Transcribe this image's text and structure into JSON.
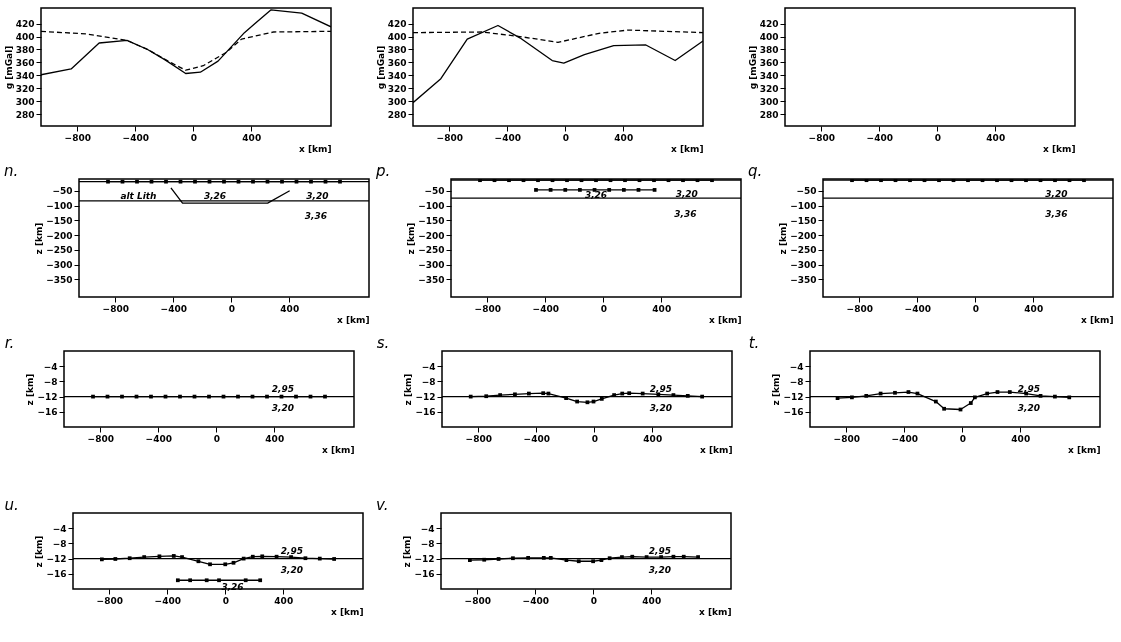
{
  "chart_data": [
    {
      "type": "line",
      "xlabel": "x [km]",
      "ylabel": "g [mGal]",
      "xlim": [
        -1050,
        950
      ],
      "xticks": [
        -800,
        -400,
        0,
        400
      ],
      "ylim": [
        262,
        444
      ],
      "yticks": [
        280,
        300,
        320,
        340,
        360,
        380,
        400,
        420
      ],
      "series": [
        {
          "color": "#000000",
          "line_style": "solid",
          "marker": "none",
          "x": [
            -1050,
            -842,
            -649,
            -457,
            -315,
            -194,
            -52,
            49,
            171,
            353,
            535,
            748,
            950
          ],
          "values": [
            341,
            350,
            390,
            394,
            380,
            364,
            343,
            345,
            362,
            406,
            441,
            436,
            415
          ]
        },
        {
          "color": "#000000",
          "line_style": "dashed",
          "marker": "none",
          "x": [
            -1050,
            -740,
            -457,
            -315,
            -173,
            -52,
            69,
            231,
            333,
            555,
            950
          ],
          "values": [
            408,
            404,
            394,
            380,
            362,
            348,
            355,
            376,
            396,
            407,
            408
          ]
        }
      ]
    },
    {
      "type": "line",
      "title": "n.",
      "xlabel": "x [km]",
      "ylabel": "z [km]",
      "xlim": [
        -1050,
        950
      ],
      "xticks": [
        -800,
        -400,
        0,
        400
      ],
      "ylim": [
        -410,
        -10
      ],
      "yticks": [
        -50,
        -100,
        -150,
        -200,
        -250,
        -300,
        -350
      ],
      "series": [
        {
          "color": "#000000",
          "line_style": "solid",
          "marker": "none",
          "x": [
            -1050,
            950
          ],
          "values": [
            -19,
            -19
          ]
        },
        {
          "color": "#000000",
          "line_style": "solid",
          "marker": "square",
          "x": [
            -850,
            -750,
            -650,
            -550,
            -450,
            -350,
            -250,
            -150,
            -50,
            50,
            150,
            250,
            350,
            450,
            550,
            650,
            750
          ],
          "values": [
            -19,
            -19,
            -19,
            -19,
            -19,
            -19,
            -19,
            -19,
            -19,
            -19,
            -19,
            -19,
            -19,
            -19,
            -19,
            -19,
            -19
          ]
        },
        {
          "color": "#000000",
          "line_style": "solid",
          "marker": "none",
          "x": [
            -1050,
            950
          ],
          "values": [
            -84,
            -84
          ]
        },
        {
          "color": "#000000",
          "line_style": "solid",
          "marker": "none",
          "x": [
            -416,
            -336,
            251,
            403
          ],
          "values": [
            -40,
            -92,
            -92,
            -50
          ]
        }
      ],
      "annotations": [
        "alt Lith",
        "3,26",
        "3,20",
        "3,36"
      ]
    },
    {
      "type": "line",
      "xlabel": "x [km]",
      "ylabel": "g [mGal]",
      "xlim": [
        -1050,
        950
      ],
      "xticks": [
        -800,
        -400,
        0,
        400
      ],
      "ylim": [
        262,
        444
      ],
      "yticks": [
        280,
        300,
        320,
        340,
        360,
        380,
        400,
        420
      ],
      "series": [
        {
          "color": "#000000",
          "line_style": "solid",
          "marker": "none",
          "x": [
            -1050,
            -858,
            -676,
            -464,
            -313,
            -90,
            -10,
            132,
            334,
            556,
            758,
            950
          ],
          "values": [
            298,
            335,
            396,
            417,
            398,
            363,
            359,
            372,
            386,
            387,
            363,
            393
          ]
        },
        {
          "color": "#000000",
          "line_style": "dashed",
          "marker": "none",
          "x": [
            -1050,
            -575,
            -313,
            -50,
            233,
            435,
            950
          ],
          "values": [
            406,
            407,
            400,
            391,
            405,
            410,
            406
          ]
        }
      ]
    },
    {
      "type": "line",
      "title": "p.",
      "xlabel": "x [km]",
      "ylabel": "z [km]",
      "xlim": [
        -1050,
        950
      ],
      "xticks": [
        -800,
        -400,
        0,
        400
      ],
      "ylim": [
        -410,
        -10
      ],
      "yticks": [
        -50,
        -100,
        -150,
        -200,
        -250,
        -300,
        -350
      ],
      "series": [
        {
          "color": "#000000",
          "line_style": "solid",
          "marker": "none",
          "x": [
            -1050,
            950
          ],
          "values": [
            -14,
            -14
          ]
        },
        {
          "color": "#000000",
          "line_style": "solid",
          "marker": "square",
          "x": [
            -850,
            -750,
            -650,
            -550,
            -450,
            -350,
            -250,
            -150,
            -50,
            50,
            150,
            250,
            350,
            450,
            550,
            650,
            750
          ],
          "values": [
            -14,
            -14,
            -14,
            -14,
            -14,
            -14,
            -14,
            -14,
            -14,
            -14,
            -14,
            -14,
            -14,
            -14,
            -14,
            -14,
            -14
          ]
        },
        {
          "color": "#000000",
          "line_style": "solid",
          "marker": "none",
          "x": [
            -1050,
            950
          ],
          "values": [
            -75,
            -75
          ]
        },
        {
          "color": "#000000",
          "line_style": "solid",
          "marker": "square",
          "x": [
            -464,
            -363,
            -262,
            -161,
            -60,
            41,
            142,
            243,
            354
          ],
          "values": [
            -47,
            -47,
            -47,
            -47,
            -47,
            -47,
            -47,
            -47,
            -47
          ]
        }
      ],
      "annotations": [
        "3,26",
        "3,20",
        "3,36"
      ]
    },
    {
      "type": "line",
      "xlabel": "x [km]",
      "ylabel": "g [mGal]",
      "xlim": [
        -1050,
        950
      ],
      "xticks": [
        -800,
        -400,
        0,
        400
      ],
      "ylim": [
        262,
        444
      ],
      "yticks": [
        280,
        300,
        320,
        340,
        360,
        380,
        400,
        420
      ]
    },
    {
      "type": "line",
      "title": "q.",
      "xlabel": "x [km]",
      "ylabel": "z [km]",
      "xlim": [
        -1050,
        950
      ],
      "xticks": [
        -800,
        -400,
        0,
        400
      ],
      "ylim": [
        -410,
        -10
      ],
      "yticks": [
        -50,
        -100,
        -150,
        -200,
        -250,
        -300,
        -350
      ],
      "series": [
        {
          "color": "#000000",
          "line_style": "solid",
          "marker": "none",
          "x": [
            -1050,
            950
          ],
          "values": [
            -14,
            -14
          ]
        },
        {
          "color": "#000000",
          "line_style": "solid",
          "marker": "square",
          "x": [
            -850,
            -750,
            -650,
            -550,
            -450,
            -350,
            -250,
            -150,
            -50,
            50,
            150,
            250,
            350,
            450,
            550,
            650,
            750
          ],
          "values": [
            -14,
            -14,
            -14,
            -14,
            -14,
            -14,
            -14,
            -14,
            -14,
            -14,
            -14,
            -14,
            -14,
            -14,
            -14,
            -14,
            -14
          ]
        },
        {
          "color": "#000000",
          "line_style": "solid",
          "marker": "none",
          "x": [
            -1050,
            950
          ],
          "values": [
            -75,
            -75
          ]
        }
      ],
      "annotations": [
        "3,20",
        "3,36"
      ]
    },
    {
      "type": "line",
      "title": "r.",
      "xlabel": "x [km]",
      "ylabel": "z [km]",
      "xlim": [
        -1050,
        950
      ],
      "xticks": [
        -800,
        -400,
        0,
        400
      ],
      "ylim": [
        -20,
        0
      ],
      "yticks": [
        -4,
        -8,
        -12,
        -16
      ],
      "series": [
        {
          "color": "#000000",
          "line_style": "solid",
          "marker": "none",
          "x": [
            -1050,
            950
          ],
          "values": [
            -12,
            -12
          ]
        },
        {
          "color": "#000000",
          "line_style": "solid",
          "marker": "square",
          "x": [
            -850,
            -750,
            -650,
            -550,
            -450,
            -350,
            -250,
            -150,
            -50,
            50,
            150,
            250,
            350,
            450,
            550,
            650,
            750
          ],
          "values": [
            -12,
            -12,
            -12,
            -12,
            -12,
            -12,
            -12,
            -12,
            -12,
            -12,
            -12,
            -12,
            -12,
            -12,
            -12,
            -12,
            -12
          ]
        }
      ],
      "annotations": [
        "2,95",
        "3,20"
      ]
    },
    {
      "type": "line",
      "title": "s.",
      "xlabel": "x [km]",
      "ylabel": "z [km]",
      "xlim": [
        -1050,
        950
      ],
      "xticks": [
        -800,
        -400,
        0,
        400
      ],
      "ylim": [
        -20,
        0
      ],
      "yticks": [
        -4,
        -8,
        -12,
        -16
      ],
      "series": [
        {
          "color": "#000000",
          "line_style": "solid",
          "marker": "none",
          "x": [
            -1050,
            950
          ],
          "values": [
            -12,
            -12
          ]
        },
        {
          "color": "#000000",
          "line_style": "solid",
          "marker": "square",
          "x": [
            -852,
            -745,
            -649,
            -547,
            -451,
            -352,
            -316,
            -194,
            -118,
            -47,
            -5,
            52,
            137,
            193,
            241,
            334,
            442,
            546,
            645,
            744
          ],
          "values": [
            -12,
            -11.9,
            -11.6,
            -11.4,
            -11.2,
            -11.1,
            -11.2,
            -12.4,
            -13.3,
            -13.5,
            -13.3,
            -12.6,
            -11.6,
            -11.2,
            -11.1,
            -11.2,
            -11.4,
            -11.6,
            -11.8,
            -12
          ]
        }
      ],
      "annotations": [
        "2,95",
        "3,20"
      ]
    },
    {
      "type": "line",
      "title": "t.",
      "xlabel": "x [km]",
      "ylabel": "z [km]",
      "xlim": [
        -1050,
        950
      ],
      "xticks": [
        -800,
        -400,
        0,
        400
      ],
      "ylim": [
        -20,
        0
      ],
      "yticks": [
        -4,
        -8,
        -12,
        -16
      ],
      "series": [
        {
          "color": "#000000",
          "line_style": "solid",
          "marker": "none",
          "x": [
            -1050,
            950
          ],
          "values": [
            -12,
            -12
          ]
        },
        {
          "color": "#000000",
          "line_style": "solid",
          "marker": "square",
          "x": [
            -860,
            -761,
            -662,
            -563,
            -464,
            -371,
            -309,
            -182,
            -125,
            -12,
            59,
            87,
            172,
            243,
            328,
            441,
            540,
            639,
            738
          ],
          "values": [
            -12.4,
            -12.2,
            -11.8,
            -11.2,
            -11,
            -10.8,
            -11.2,
            -13.3,
            -15.2,
            -15.4,
            -13.7,
            -12.2,
            -11.2,
            -10.8,
            -10.8,
            -11.2,
            -11.8,
            -12,
            -12.2
          ]
        }
      ],
      "annotations": [
        "2,95",
        "3,20"
      ]
    },
    {
      "type": "line",
      "title": "u.",
      "xlabel": "x [km]",
      "ylabel": "z [km]",
      "xlim": [
        -1050,
        950
      ],
      "xticks": [
        -800,
        -400,
        0,
        400
      ],
      "ylim": [
        -20,
        0
      ],
      "yticks": [
        -4,
        -8,
        -12,
        -16
      ],
      "series": [
        {
          "color": "#000000",
          "line_style": "solid",
          "marker": "none",
          "x": [
            -1050,
            950
          ],
          "values": [
            -12,
            -12
          ]
        },
        {
          "color": "#000000",
          "line_style": "solid",
          "marker": "square",
          "x": [
            -851,
            -758,
            -659,
            -559,
            -454,
            -355,
            -298,
            -185,
            -105,
            0,
            57,
            127,
            190,
            255,
            354,
            454,
            553,
            652,
            751
          ],
          "values": [
            -12.2,
            -12.1,
            -11.9,
            -11.6,
            -11.4,
            -11.3,
            -11.6,
            -12.7,
            -13.5,
            -13.5,
            -13.1,
            -12,
            -11.5,
            -11.4,
            -11.5,
            -11.6,
            -11.9,
            -12,
            -12.1
          ]
        },
        {
          "color": "#000000",
          "line_style": "solid",
          "marker": "square",
          "x": [
            -327,
            -242,
            -128,
            -43,
            141,
            241
          ],
          "values": [
            -17.7,
            -17.7,
            -17.7,
            -17.7,
            -17.7,
            -17.7
          ]
        }
      ],
      "annotations": [
        "2,95",
        "3,20",
        "3,26"
      ]
    },
    {
      "type": "line",
      "title": "v.",
      "xlabel": "x [km]",
      "ylabel": "z [km]",
      "xlim": [
        -1050,
        950
      ],
      "xticks": [
        -800,
        -400,
        0,
        400
      ],
      "ylim": [
        -20,
        0
      ],
      "yticks": [
        -4,
        -8,
        -12,
        -16
      ],
      "series": [
        {
          "color": "#000000",
          "line_style": "solid",
          "marker": "none",
          "x": [
            -1050,
            950
          ],
          "values": [
            -12,
            -12
          ]
        },
        {
          "color": "#000000",
          "line_style": "solid",
          "marker": "square",
          "x": [
            -851,
            -752,
            -653,
            -554,
            -449,
            -341,
            -293,
            -185,
            -100,
            -1,
            56,
            113,
            198,
            269,
            368,
            468,
            553,
            624,
            723
          ],
          "values": [
            -12.4,
            -12.3,
            -12.1,
            -11.9,
            -11.8,
            -11.8,
            -11.8,
            -12.4,
            -12.7,
            -12.7,
            -12.4,
            -11.9,
            -11.6,
            -11.5,
            -11.6,
            -11.6,
            -11.5,
            -11.5,
            -11.6
          ]
        }
      ],
      "annotations": [
        "2,95",
        "3,20"
      ]
    }
  ]
}
